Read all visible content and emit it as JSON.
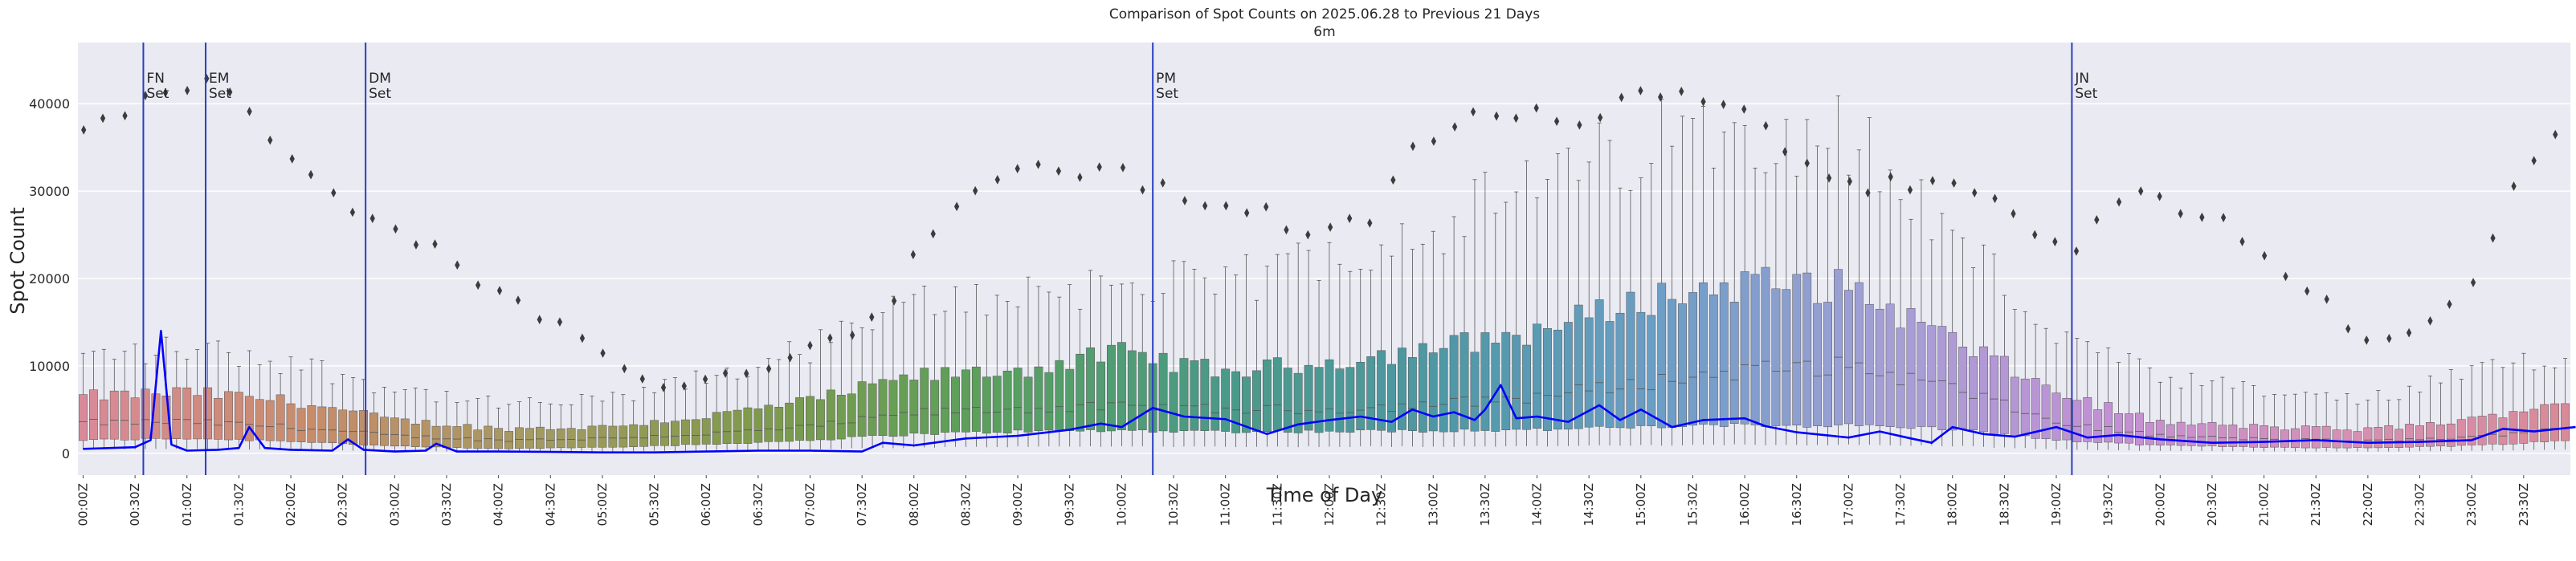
{
  "chart_data": {
    "type": "box",
    "title": "Comparison of Spot Counts on 2025.06.28 to Previous 21 Days",
    "subtitle": "6m",
    "xlabel": "Time of Day",
    "ylabel": "Spot Count",
    "ylim": [
      -2500,
      47000
    ],
    "grid": true,
    "yticks": [
      0,
      10000,
      20000,
      30000,
      40000
    ],
    "ytick_labels": [
      "0",
      "10000",
      "20000",
      "30000",
      "40000"
    ],
    "x_tick_labels": [
      "00:00Z",
      "00:30Z",
      "01:00Z",
      "01:30Z",
      "02:00Z",
      "02:30Z",
      "03:00Z",
      "03:30Z",
      "04:00Z",
      "04:30Z",
      "05:00Z",
      "05:30Z",
      "06:00Z",
      "06:30Z",
      "07:00Z",
      "07:30Z",
      "08:00Z",
      "08:30Z",
      "09:00Z",
      "09:30Z",
      "10:00Z",
      "10:30Z",
      "11:00Z",
      "11:30Z",
      "12:00Z",
      "12:30Z",
      "13:00Z",
      "13:30Z",
      "14:00Z",
      "14:30Z",
      "15:00Z",
      "15:30Z",
      "16:00Z",
      "16:30Z",
      "17:00Z",
      "17:30Z",
      "18:00Z",
      "18:30Z",
      "19:00Z",
      "19:30Z",
      "20:00Z",
      "20:30Z",
      "21:00Z",
      "21:30Z",
      "22:00Z",
      "22:30Z",
      "23:00Z",
      "23:30Z"
    ],
    "bins_per_label": 5,
    "total_bins": 240,
    "box_profile": {
      "hours": [
        0,
        1,
        2,
        3,
        4,
        5,
        6,
        7,
        8,
        9,
        10,
        11,
        12,
        13,
        14,
        15,
        16,
        17,
        18,
        19,
        20,
        21,
        22,
        23,
        24
      ],
      "q1": [
        1500,
        1700,
        1400,
        800,
        500,
        700,
        1000,
        1500,
        2200,
        2500,
        2600,
        2500,
        2500,
        2600,
        2700,
        3000,
        3200,
        3200,
        2800,
        1500,
        900,
        700,
        600,
        900,
        1500
      ],
      "median": [
        3500,
        3600,
        3000,
        2000,
        1500,
        1700,
        2200,
        3000,
        4600,
        5100,
        5300,
        5000,
        5000,
        5600,
        6500,
        8000,
        9500,
        10000,
        7500,
        3500,
        2000,
        1600,
        1400,
        1800,
        3200
      ],
      "q3": [
        6500,
        7000,
        6000,
        3800,
        2800,
        3000,
        4200,
        6000,
        8800,
        9500,
        11500,
        9300,
        10500,
        12000,
        14000,
        17500,
        19500,
        19000,
        13000,
        7000,
        3500,
        3000,
        2700,
        3800,
        6300
      ],
      "whisker_hi": [
        11000,
        12000,
        10500,
        7500,
        5500,
        6000,
        8500,
        12000,
        17000,
        18500,
        19500,
        19000,
        23000,
        26000,
        30500,
        35000,
        38000,
        36500,
        25000,
        13500,
        8500,
        7000,
        6000,
        9000,
        12000
      ]
    },
    "outlier_trend": {
      "hours": [
        0,
        0.5,
        0.9,
        1.4,
        1.9,
        2.3,
        2.8,
        3.3,
        3.8,
        4.3,
        4.7,
        5.2,
        5.6,
        6.0,
        6.6,
        7.0,
        7.4,
        7.8,
        8.3,
        8.8,
        9.3,
        9.9,
        10.3,
        10.8,
        11.3,
        11.9,
        12.4,
        12.9,
        13.4,
        13.9,
        14.4,
        14.9,
        15.3,
        15.7,
        16.2,
        16.7,
        17.2,
        17.8,
        18.3,
        18.8,
        19.2,
        19.7,
        20.2,
        20.6,
        21.1,
        21.6,
        22.0,
        22.5,
        23.0,
        23.4,
        24.0
      ],
      "values": [
        37000,
        40000,
        42500,
        41000,
        36000,
        32000,
        26500,
        24000,
        20000,
        16500,
        14000,
        9500,
        7500,
        8500,
        10000,
        12000,
        14000,
        18000,
        28000,
        31500,
        32000,
        33000,
        30000,
        29000,
        28000,
        24500,
        27000,
        36000,
        38500,
        38000,
        39000,
        40500,
        43000,
        41000,
        37000,
        33000,
        31000,
        30000,
        29500,
        25000,
        23000,
        30000,
        27500,
        26000,
        22000,
        17000,
        12500,
        14000,
        20000,
        30500,
        38500
      ]
    },
    "series": [
      {
        "name": "2025.06.28",
        "type": "line",
        "color": "#0000ff",
        "hours": [
          0,
          0.5,
          0.65,
          0.75,
          0.85,
          1.0,
          1.3,
          1.5,
          1.6,
          1.75,
          2.0,
          2.4,
          2.55,
          2.7,
          3.0,
          3.3,
          3.4,
          3.6,
          4.0,
          4.5,
          5.0,
          5.5,
          6.0,
          6.5,
          7.0,
          7.5,
          7.7,
          8.0,
          8.5,
          9.0,
          9.5,
          9.8,
          10.0,
          10.3,
          10.6,
          11.0,
          11.4,
          11.7,
          12.0,
          12.3,
          12.6,
          12.8,
          13.0,
          13.2,
          13.4,
          13.5,
          13.65,
          13.8,
          14.0,
          14.3,
          14.6,
          14.8,
          15.0,
          15.3,
          15.6,
          16.0,
          16.2,
          16.5,
          17.0,
          17.3,
          17.6,
          17.8,
          18.0,
          18.3,
          18.6,
          19.0,
          19.3,
          19.6,
          20.0,
          20.5,
          21.0,
          21.5,
          22.0,
          22.5,
          23.0,
          23.3,
          23.6,
          24.0
        ],
        "values": [
          500,
          700,
          1500,
          14000,
          1000,
          300,
          400,
          600,
          3000,
          600,
          400,
          300,
          1600,
          400,
          200,
          300,
          1100,
          200,
          200,
          150,
          100,
          100,
          200,
          300,
          300,
          200,
          1200,
          900,
          1700,
          2000,
          2700,
          3400,
          3000,
          5200,
          4200,
          3900,
          2200,
          3300,
          3800,
          4200,
          3600,
          5000,
          4200,
          4700,
          3800,
          5000,
          7800,
          4000,
          4200,
          3600,
          5500,
          3800,
          5000,
          3000,
          3800,
          4000,
          3100,
          2400,
          1800,
          2500,
          1700,
          1200,
          3000,
          2200,
          1900,
          3000,
          1800,
          2100,
          1600,
          1200,
          1300,
          1500,
          1200,
          1300,
          1500,
          2800,
          2500,
          3000
        ]
      }
    ],
    "events": [
      {
        "label": "FN\nSet",
        "hour": 0.58
      },
      {
        "label": "EM\nSet",
        "hour": 1.18
      },
      {
        "label": "DM\nSet",
        "hour": 2.72
      },
      {
        "label": "PM\nSet",
        "hour": 10.3
      },
      {
        "label": "JN\nSet",
        "hour": 19.15
      }
    ],
    "palette": [
      "#d98a98",
      "#c78c6a",
      "#a49a60",
      "#7f9a4c",
      "#5aa05c",
      "#4a9a86",
      "#4e98a4",
      "#6c9ec6",
      "#a59fd6",
      "#c390d4",
      "#d690b4",
      "#d98a98"
    ]
  }
}
